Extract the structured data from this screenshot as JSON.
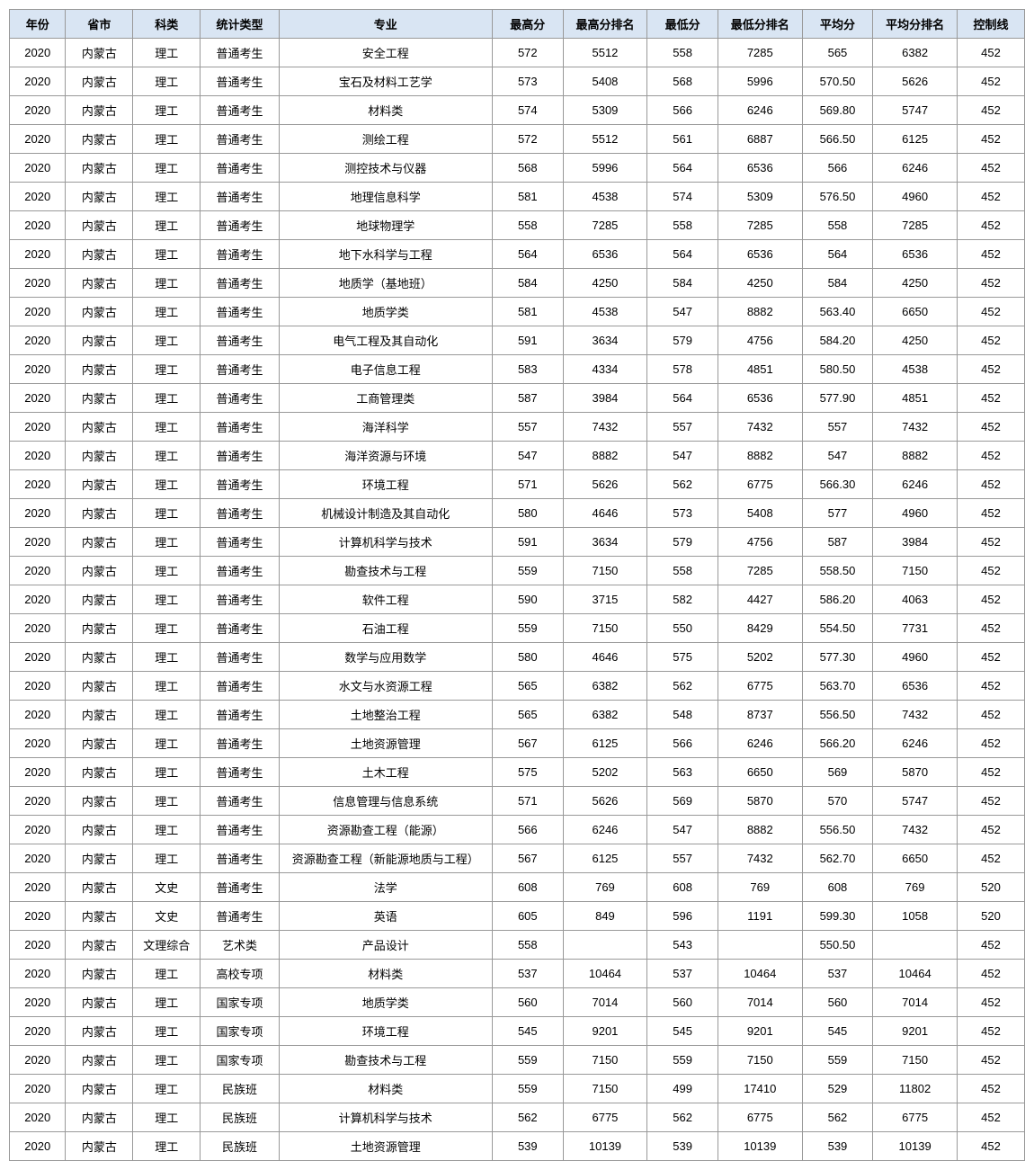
{
  "table": {
    "header_bg": "#d9e5f3",
    "border_color": "#999999",
    "font_size": 13,
    "columns": [
      {
        "label": "年份"
      },
      {
        "label": "省市"
      },
      {
        "label": "科类"
      },
      {
        "label": "统计类型"
      },
      {
        "label": "专业"
      },
      {
        "label": "最高分"
      },
      {
        "label": "最高分排名"
      },
      {
        "label": "最低分"
      },
      {
        "label": "最低分排名"
      },
      {
        "label": "平均分"
      },
      {
        "label": "平均分排名"
      },
      {
        "label": "控制线"
      }
    ],
    "rows": [
      [
        "2020",
        "内蒙古",
        "理工",
        "普通考生",
        "安全工程",
        "572",
        "5512",
        "558",
        "7285",
        "565",
        "6382",
        "452"
      ],
      [
        "2020",
        "内蒙古",
        "理工",
        "普通考生",
        "宝石及材料工艺学",
        "573",
        "5408",
        "568",
        "5996",
        "570.50",
        "5626",
        "452"
      ],
      [
        "2020",
        "内蒙古",
        "理工",
        "普通考生",
        "材料类",
        "574",
        "5309",
        "566",
        "6246",
        "569.80",
        "5747",
        "452"
      ],
      [
        "2020",
        "内蒙古",
        "理工",
        "普通考生",
        "测绘工程",
        "572",
        "5512",
        "561",
        "6887",
        "566.50",
        "6125",
        "452"
      ],
      [
        "2020",
        "内蒙古",
        "理工",
        "普通考生",
        "测控技术与仪器",
        "568",
        "5996",
        "564",
        "6536",
        "566",
        "6246",
        "452"
      ],
      [
        "2020",
        "内蒙古",
        "理工",
        "普通考生",
        "地理信息科学",
        "581",
        "4538",
        "574",
        "5309",
        "576.50",
        "4960",
        "452"
      ],
      [
        "2020",
        "内蒙古",
        "理工",
        "普通考生",
        "地球物理学",
        "558",
        "7285",
        "558",
        "7285",
        "558",
        "7285",
        "452"
      ],
      [
        "2020",
        "内蒙古",
        "理工",
        "普通考生",
        "地下水科学与工程",
        "564",
        "6536",
        "564",
        "6536",
        "564",
        "6536",
        "452"
      ],
      [
        "2020",
        "内蒙古",
        "理工",
        "普通考生",
        "地质学（基地班）",
        "584",
        "4250",
        "584",
        "4250",
        "584",
        "4250",
        "452"
      ],
      [
        "2020",
        "内蒙古",
        "理工",
        "普通考生",
        "地质学类",
        "581",
        "4538",
        "547",
        "8882",
        "563.40",
        "6650",
        "452"
      ],
      [
        "2020",
        "内蒙古",
        "理工",
        "普通考生",
        "电气工程及其自动化",
        "591",
        "3634",
        "579",
        "4756",
        "584.20",
        "4250",
        "452"
      ],
      [
        "2020",
        "内蒙古",
        "理工",
        "普通考生",
        "电子信息工程",
        "583",
        "4334",
        "578",
        "4851",
        "580.50",
        "4538",
        "452"
      ],
      [
        "2020",
        "内蒙古",
        "理工",
        "普通考生",
        "工商管理类",
        "587",
        "3984",
        "564",
        "6536",
        "577.90",
        "4851",
        "452"
      ],
      [
        "2020",
        "内蒙古",
        "理工",
        "普通考生",
        "海洋科学",
        "557",
        "7432",
        "557",
        "7432",
        "557",
        "7432",
        "452"
      ],
      [
        "2020",
        "内蒙古",
        "理工",
        "普通考生",
        "海洋资源与环境",
        "547",
        "8882",
        "547",
        "8882",
        "547",
        "8882",
        "452"
      ],
      [
        "2020",
        "内蒙古",
        "理工",
        "普通考生",
        "环境工程",
        "571",
        "5626",
        "562",
        "6775",
        "566.30",
        "6246",
        "452"
      ],
      [
        "2020",
        "内蒙古",
        "理工",
        "普通考生",
        "机械设计制造及其自动化",
        "580",
        "4646",
        "573",
        "5408",
        "577",
        "4960",
        "452"
      ],
      [
        "2020",
        "内蒙古",
        "理工",
        "普通考生",
        "计算机科学与技术",
        "591",
        "3634",
        "579",
        "4756",
        "587",
        "3984",
        "452"
      ],
      [
        "2020",
        "内蒙古",
        "理工",
        "普通考生",
        "勘查技术与工程",
        "559",
        "7150",
        "558",
        "7285",
        "558.50",
        "7150",
        "452"
      ],
      [
        "2020",
        "内蒙古",
        "理工",
        "普通考生",
        "软件工程",
        "590",
        "3715",
        "582",
        "4427",
        "586.20",
        "4063",
        "452"
      ],
      [
        "2020",
        "内蒙古",
        "理工",
        "普通考生",
        "石油工程",
        "559",
        "7150",
        "550",
        "8429",
        "554.50",
        "7731",
        "452"
      ],
      [
        "2020",
        "内蒙古",
        "理工",
        "普通考生",
        "数学与应用数学",
        "580",
        "4646",
        "575",
        "5202",
        "577.30",
        "4960",
        "452"
      ],
      [
        "2020",
        "内蒙古",
        "理工",
        "普通考生",
        "水文与水资源工程",
        "565",
        "6382",
        "562",
        "6775",
        "563.70",
        "6536",
        "452"
      ],
      [
        "2020",
        "内蒙古",
        "理工",
        "普通考生",
        "土地整治工程",
        "565",
        "6382",
        "548",
        "8737",
        "556.50",
        "7432",
        "452"
      ],
      [
        "2020",
        "内蒙古",
        "理工",
        "普通考生",
        "土地资源管理",
        "567",
        "6125",
        "566",
        "6246",
        "566.20",
        "6246",
        "452"
      ],
      [
        "2020",
        "内蒙古",
        "理工",
        "普通考生",
        "土木工程",
        "575",
        "5202",
        "563",
        "6650",
        "569",
        "5870",
        "452"
      ],
      [
        "2020",
        "内蒙古",
        "理工",
        "普通考生",
        "信息管理与信息系统",
        "571",
        "5626",
        "569",
        "5870",
        "570",
        "5747",
        "452"
      ],
      [
        "2020",
        "内蒙古",
        "理工",
        "普通考生",
        "资源勘查工程（能源）",
        "566",
        "6246",
        "547",
        "8882",
        "556.50",
        "7432",
        "452"
      ],
      [
        "2020",
        "内蒙古",
        "理工",
        "普通考生",
        "资源勘查工程（新能源地质与工程）",
        "567",
        "6125",
        "557",
        "7432",
        "562.70",
        "6650",
        "452"
      ],
      [
        "2020",
        "内蒙古",
        "文史",
        "普通考生",
        "法学",
        "608",
        "769",
        "608",
        "769",
        "608",
        "769",
        "520"
      ],
      [
        "2020",
        "内蒙古",
        "文史",
        "普通考生",
        "英语",
        "605",
        "849",
        "596",
        "1191",
        "599.30",
        "1058",
        "520"
      ],
      [
        "2020",
        "内蒙古",
        "文理综合",
        "艺术类",
        "产品设计",
        "558",
        "",
        "543",
        "",
        "550.50",
        "",
        "452"
      ],
      [
        "2020",
        "内蒙古",
        "理工",
        "高校专项",
        "材料类",
        "537",
        "10464",
        "537",
        "10464",
        "537",
        "10464",
        "452"
      ],
      [
        "2020",
        "内蒙古",
        "理工",
        "国家专项",
        "地质学类",
        "560",
        "7014",
        "560",
        "7014",
        "560",
        "7014",
        "452"
      ],
      [
        "2020",
        "内蒙古",
        "理工",
        "国家专项",
        "环境工程",
        "545",
        "9201",
        "545",
        "9201",
        "545",
        "9201",
        "452"
      ],
      [
        "2020",
        "内蒙古",
        "理工",
        "国家专项",
        "勘查技术与工程",
        "559",
        "7150",
        "559",
        "7150",
        "559",
        "7150",
        "452"
      ],
      [
        "2020",
        "内蒙古",
        "理工",
        "民族班",
        "材料类",
        "559",
        "7150",
        "499",
        "17410",
        "529",
        "11802",
        "452"
      ],
      [
        "2020",
        "内蒙古",
        "理工",
        "民族班",
        "计算机科学与技术",
        "562",
        "6775",
        "562",
        "6775",
        "562",
        "6775",
        "452"
      ],
      [
        "2020",
        "内蒙古",
        "理工",
        "民族班",
        "土地资源管理",
        "539",
        "10139",
        "539",
        "10139",
        "539",
        "10139",
        "452"
      ]
    ]
  }
}
